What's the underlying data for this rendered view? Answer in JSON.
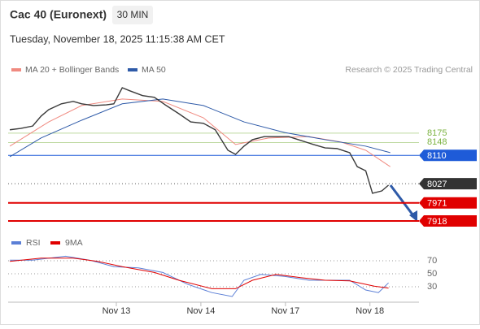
{
  "chart_data": [
    {
      "type": "line",
      "title": "Cac 40 (Euronext)",
      "interval": "30 MIN",
      "subtitle": "Tuesday, November 18, 2025 11:15:38 AM CET",
      "credit": "Research © 2025 Trading Central",
      "xlim": [
        -0.28,
        4.58
      ],
      "xticks": [
        {
          "value": 1,
          "label": "Nov 13"
        },
        {
          "value": 2,
          "label": "Nov 14"
        },
        {
          "value": 3,
          "label": "Nov 17"
        },
        {
          "value": 4,
          "label": "Nov 18"
        }
      ],
      "ylim": [
        7899,
        8339
      ],
      "price": {
        "color": "#3a3a3a",
        "x": [
          -0.26,
          -0.13,
          0.01,
          0.11,
          0.2,
          0.35,
          0.49,
          0.59,
          0.73,
          0.88,
          0.97,
          1.07,
          1.16,
          1.31,
          1.45,
          1.59,
          1.74,
          1.88,
          2.03,
          2.17,
          2.32,
          2.41,
          2.51,
          2.61,
          2.75,
          2.89,
          3.04,
          3.18,
          3.33,
          3.47,
          3.61,
          3.76,
          3.85,
          3.95,
          4.03,
          4.14,
          4.22
        ],
        "values": [
          8185,
          8189,
          8196,
          8225,
          8244,
          8261,
          8268,
          8261,
          8256,
          8258,
          8261,
          8308,
          8299,
          8285,
          8280,
          8256,
          8232,
          8208,
          8204,
          8185,
          8125,
          8113,
          8137,
          8156,
          8165,
          8165,
          8165,
          8154,
          8142,
          8132,
          8130,
          8118,
          8077,
          8065,
          7999,
          8006,
          8023
        ]
      },
      "series": [
        {
          "name": "MA 20 + Bollinger Bands",
          "color": "#f08a80",
          "x": [
            -0.26,
            0.2,
            0.59,
            1.07,
            1.55,
            2.03,
            2.41,
            2.8,
            3.28,
            3.66,
            3.95,
            4.24
          ],
          "values": [
            8137,
            8208,
            8256,
            8275,
            8268,
            8220,
            8142,
            8161,
            8165,
            8149,
            8125,
            8077
          ]
        },
        {
          "name": "MA 50",
          "color": "#2e5aa8",
          "x": [
            -0.26,
            0.11,
            0.59,
            1.07,
            1.55,
            2.03,
            2.51,
            2.99,
            3.47,
            3.95,
            4.24
          ],
          "values": [
            8106,
            8161,
            8213,
            8261,
            8275,
            8256,
            8208,
            8177,
            8156,
            8137,
            8118
          ]
        }
      ],
      "levels": [
        {
          "value": 8175,
          "color": "#7cb342"
        },
        {
          "value": 8148,
          "color": "#7cb342"
        },
        {
          "value": 8110,
          "color": "#1e5bd8"
        },
        {
          "value": 8027,
          "color": "#333333"
        },
        {
          "value": 7971,
          "color": "#e00000"
        },
        {
          "value": 7918,
          "color": "#e00000"
        }
      ]
    },
    {
      "type": "line",
      "ylim": [
        8.75,
        98.75
      ],
      "yticks": [
        70,
        50,
        30
      ],
      "series": [
        {
          "name": "RSI",
          "color": "#5b7fd6",
          "x": [
            -0.26,
            0.01,
            0.4,
            0.68,
            0.97,
            1.26,
            1.55,
            1.84,
            2.13,
            2.37,
            2.51,
            2.71,
            2.99,
            3.28,
            3.57,
            3.76,
            3.95,
            4.1,
            4.22
          ],
          "values": [
            71,
            71,
            77,
            71,
            61,
            59,
            52,
            34,
            21,
            15,
            40,
            49,
            46,
            40,
            40,
            40,
            25,
            21,
            36
          ]
        },
        {
          "name": "9MA",
          "color": "#e00000",
          "x": [
            -0.26,
            0.11,
            0.49,
            0.78,
            1.07,
            1.45,
            1.74,
            2.13,
            2.41,
            2.61,
            2.89,
            3.18,
            3.47,
            3.76,
            4.05,
            4.22
          ],
          "values": [
            69,
            74,
            74,
            69,
            61,
            52,
            40,
            27,
            27,
            40,
            49,
            44,
            40,
            39,
            31,
            28
          ]
        }
      ]
    }
  ]
}
